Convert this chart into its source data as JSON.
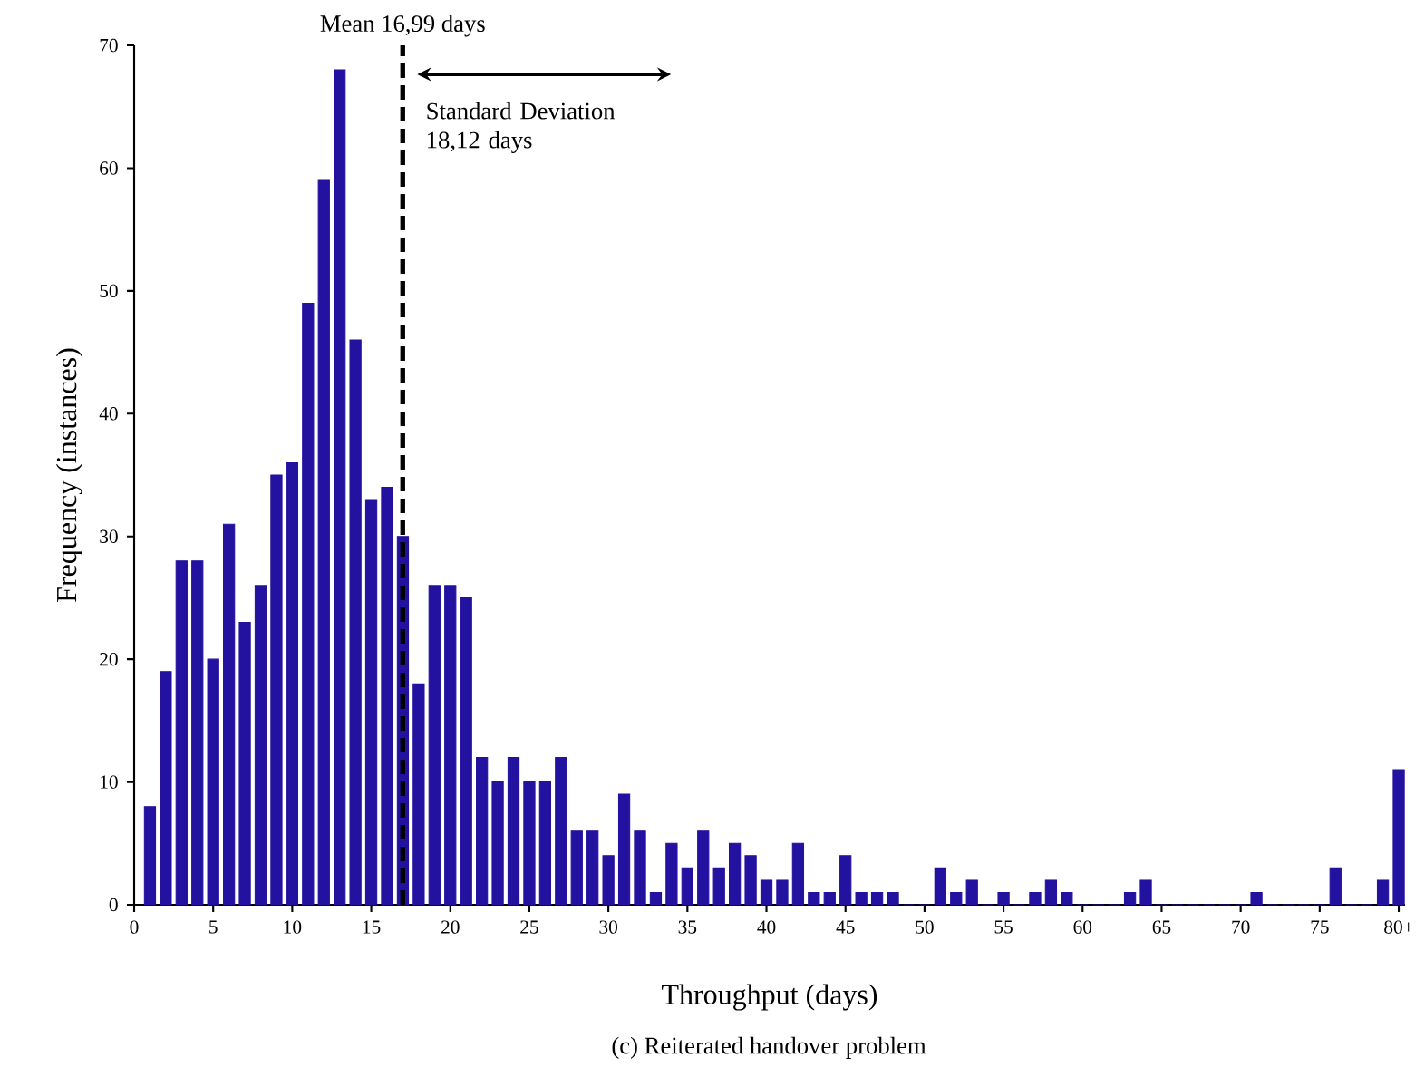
{
  "chart_data": {
    "type": "bar",
    "xlabel": "Throughput (days)",
    "ylabel": "Frequency (instances)",
    "x": [
      1,
      2,
      3,
      4,
      5,
      6,
      7,
      8,
      9,
      10,
      11,
      12,
      13,
      14,
      15,
      16,
      17,
      18,
      19,
      20,
      21,
      22,
      23,
      24,
      25,
      26,
      27,
      28,
      29,
      30,
      31,
      32,
      33,
      34,
      35,
      36,
      37,
      38,
      39,
      40,
      41,
      42,
      43,
      44,
      45,
      46,
      47,
      48,
      49,
      50,
      51,
      52,
      53,
      54,
      55,
      56,
      57,
      58,
      59,
      60,
      61,
      62,
      63,
      64,
      65,
      66,
      67,
      68,
      69,
      70,
      71,
      72,
      73,
      74,
      75,
      76,
      77,
      78,
      79,
      80
    ],
    "values": [
      8,
      19,
      28,
      28,
      20,
      31,
      23,
      26,
      35,
      36,
      49,
      59,
      68,
      46,
      33,
      34,
      30,
      18,
      26,
      26,
      25,
      12,
      10,
      12,
      10,
      10,
      12,
      6,
      6,
      4,
      9,
      6,
      1,
      5,
      3,
      6,
      3,
      5,
      4,
      2,
      2,
      5,
      1,
      1,
      4,
      1,
      1,
      1,
      0,
      0,
      3,
      1,
      2,
      0,
      1,
      0,
      1,
      2,
      1,
      0,
      0,
      0,
      1,
      2,
      0,
      0,
      0,
      0,
      0,
      0,
      1,
      0,
      0,
      0,
      0,
      3,
      0,
      0,
      2,
      11
    ],
    "color": "#23119f",
    "xlim": [
      0,
      80.4
    ],
    "ylim": [
      0,
      70
    ],
    "xticks": [
      0,
      5,
      10,
      15,
      20,
      25,
      30,
      35,
      40,
      45,
      50,
      55,
      60,
      65,
      70,
      75,
      {
        "value": 80,
        "label": "80+"
      }
    ],
    "yticks": [
      0,
      10,
      20,
      30,
      40,
      50,
      60,
      70
    ],
    "ref_lines": [
      {
        "axis": "x",
        "value": 16.99,
        "label": "Mean 16,99 days",
        "line_style": "dashed",
        "color": "#000000"
      }
    ],
    "annotations": [
      "Standard Deviation 18,12 days",
      "(c) Reiterated handover problem"
    ]
  }
}
